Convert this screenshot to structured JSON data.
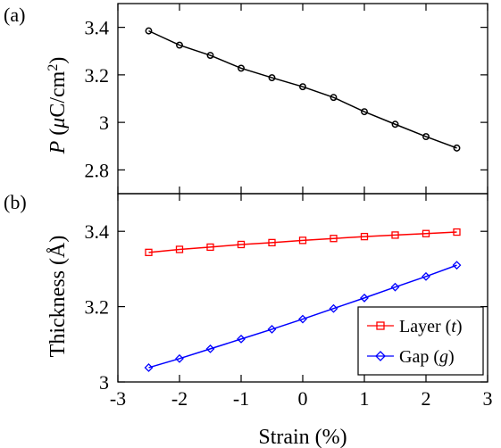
{
  "chart_data": [
    {
      "type": "line",
      "panel_label": "(a)",
      "ylabel_italic": "P",
      "ylabel_unit_open": " (",
      "ylabel_mu": "μ",
      "ylabel_unit_mid": "C/cm",
      "ylabel_sup": "2",
      "ylabel_unit_close": ")",
      "ylim": [
        2.7,
        3.5
      ],
      "yticks": [
        2.8,
        3.0,
        3.2,
        3.4
      ],
      "ytick_labels": [
        "2.8",
        "3",
        "3.2",
        "3.4"
      ],
      "xlim": [
        -3,
        3
      ],
      "grid": false,
      "series": [
        {
          "name": "",
          "color": "#000000",
          "marker": "circle",
          "x": [
            -2.5,
            -2,
            -1.5,
            -1,
            -0.5,
            0,
            0.5,
            1,
            1.5,
            2,
            2.5
          ],
          "y": [
            3.385,
            3.325,
            3.282,
            3.228,
            3.188,
            3.15,
            3.105,
            3.045,
            2.992,
            2.94,
            2.892
          ]
        }
      ]
    },
    {
      "type": "line",
      "panel_label": "(b)",
      "ylabel": "Thickness (Å)",
      "xlabel": "Strain (%)",
      "ylim": [
        3.0,
        3.5
      ],
      "yticks": [
        3.0,
        3.2,
        3.4
      ],
      "ytick_labels": [
        "3",
        "3.2",
        "3.4"
      ],
      "xlim": [
        -3,
        3
      ],
      "xticks": [
        -3,
        -2,
        -1,
        0,
        1,
        2,
        3
      ],
      "xtick_labels": [
        "-3",
        "-2",
        "-1",
        "0",
        "1",
        "2",
        "3"
      ],
      "grid": false,
      "legend_position": "bottom-right",
      "series": [
        {
          "name": "Layer (t)",
          "legend_text": "Layer (",
          "legend_var": "t",
          "color": "#ff0000",
          "marker": "square",
          "x": [
            -2.5,
            -2,
            -1.5,
            -1,
            -0.5,
            0,
            0.5,
            1,
            1.5,
            2,
            2.5
          ],
          "y": [
            3.344,
            3.352,
            3.358,
            3.365,
            3.37,
            3.376,
            3.381,
            3.386,
            3.39,
            3.394,
            3.398
          ]
        },
        {
          "name": "Gap (g)",
          "legend_text": "Gap (",
          "legend_var": "g",
          "color": "#0000ff",
          "marker": "diamond",
          "x": [
            -2.5,
            -2,
            -1.5,
            -1,
            -0.5,
            0,
            0.5,
            1,
            1.5,
            2,
            2.5
          ],
          "y": [
            3.038,
            3.062,
            3.088,
            3.114,
            3.14,
            3.167,
            3.195,
            3.223,
            3.252,
            3.28,
            3.31
          ]
        }
      ]
    }
  ]
}
